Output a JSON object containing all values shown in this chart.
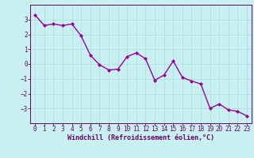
{
  "x": [
    0,
    1,
    2,
    3,
    4,
    5,
    6,
    7,
    8,
    9,
    10,
    11,
    12,
    13,
    14,
    15,
    16,
    17,
    18,
    19,
    20,
    21,
    22,
    23
  ],
  "y": [
    3.3,
    2.6,
    2.7,
    2.6,
    2.7,
    1.9,
    0.6,
    -0.05,
    -0.4,
    -0.35,
    0.5,
    0.75,
    0.35,
    -1.1,
    -0.75,
    0.2,
    -0.9,
    -1.15,
    -1.35,
    -3.0,
    -2.7,
    -3.1,
    -3.2,
    -3.5
  ],
  "line_color": "#990099",
  "marker": "D",
  "markersize": 2,
  "linewidth": 1.0,
  "bg_color": "#c8f0f0",
  "grid_color": "#aadddd",
  "xlabel": "Windchill (Refroidissement éolien,°C)",
  "xlabel_color": "#660066",
  "xlabel_fontsize": 6,
  "tick_color": "#660066",
  "tick_fontsize": 5.5,
  "ylim": [
    -4,
    4
  ],
  "xlim": [
    -0.5,
    23.5
  ],
  "yticks": [
    -3,
    -2,
    -1,
    0,
    1,
    2,
    3
  ],
  "xticks": [
    0,
    1,
    2,
    3,
    4,
    5,
    6,
    7,
    8,
    9,
    10,
    11,
    12,
    13,
    14,
    15,
    16,
    17,
    18,
    19,
    20,
    21,
    22,
    23
  ]
}
